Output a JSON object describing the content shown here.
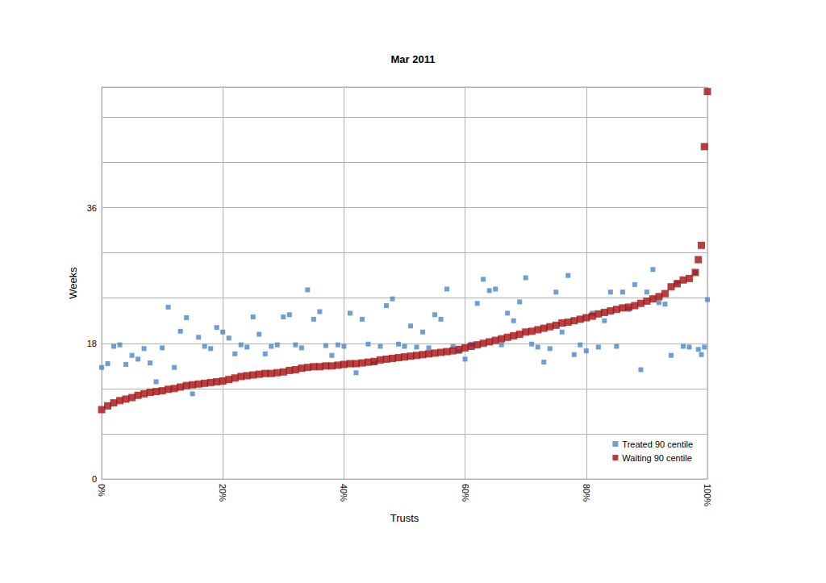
{
  "chart_data": {
    "type": "scatter",
    "title": "Mar 2011",
    "x_label": "Trusts",
    "y_label": "Weeks",
    "x": [
      0,
      1,
      2,
      3,
      4,
      5,
      6,
      7,
      8,
      9,
      10,
      11,
      12,
      13,
      14,
      15,
      16,
      17,
      18,
      19,
      20,
      21,
      22,
      23,
      24,
      25,
      26,
      27,
      28,
      29,
      30,
      31,
      32,
      33,
      34,
      35,
      36,
      37,
      38,
      39,
      40,
      41,
      42,
      43,
      44,
      45,
      46,
      47,
      48,
      49,
      50,
      51,
      52,
      53,
      54,
      55,
      56,
      57,
      58,
      59,
      60,
      61,
      62,
      63,
      64,
      65,
      66,
      67,
      68,
      69,
      70,
      71,
      72,
      73,
      74,
      75,
      76,
      77,
      78,
      79,
      80,
      81,
      82,
      83,
      84,
      85,
      86,
      87,
      88,
      89,
      90,
      91,
      92,
      93,
      94,
      95,
      96,
      97,
      98,
      98.5,
      99,
      99.5,
      100
    ],
    "series": [
      {
        "name": "Treated 90 centile",
        "color": "#4a86c8",
        "marker": "square",
        "values": [
          14.8,
          15.3,
          17.6,
          17.8,
          15.2,
          16.4,
          15.9,
          17.3,
          15.4,
          12.9,
          17.4,
          22.8,
          14.8,
          19.6,
          21.4,
          11.3,
          18.8,
          17.6,
          17.3,
          20.1,
          19.5,
          18.7,
          16.6,
          17.8,
          17.5,
          21.5,
          19.2,
          16.6,
          17.6,
          17.8,
          21.5,
          21.8,
          17.8,
          17.4,
          25.1,
          21.2,
          22.2,
          17.7,
          16.4,
          17.8,
          17.6,
          22.0,
          14.1,
          21.2,
          17.9,
          15.4,
          17.6,
          23.0,
          23.9,
          17.9,
          17.6,
          20.3,
          17.5,
          19.5,
          17.4,
          21.8,
          21.2,
          25.2,
          17.6,
          16.9,
          15.9,
          17.9,
          23.3,
          26.5,
          25.0,
          25.2,
          17.8,
          22.0,
          21.0,
          23.5,
          26.7,
          17.9,
          17.5,
          15.5,
          17.3,
          24.8,
          19.5,
          27.0,
          16.5,
          17.8,
          17.0,
          22.0,
          17.5,
          21.0,
          24.8,
          17.6,
          24.8,
          22.5,
          25.8,
          14.5,
          24.8,
          27.8,
          23.4,
          23.2,
          16.4,
          26.1,
          17.6,
          17.5,
          27.4,
          17.2,
          16.5,
          17.5,
          23.8
        ]
      },
      {
        "name": "Waiting 90 centile",
        "color": "#a50f0f",
        "marker": "square",
        "values": [
          9.2,
          9.7,
          10.1,
          10.4,
          10.6,
          10.8,
          11.1,
          11.3,
          11.5,
          11.6,
          11.7,
          11.9,
          12.0,
          12.2,
          12.4,
          12.5,
          12.6,
          12.7,
          12.8,
          12.9,
          13.0,
          13.2,
          13.4,
          13.6,
          13.7,
          13.8,
          13.9,
          14.0,
          14.0,
          14.1,
          14.2,
          14.4,
          14.5,
          14.7,
          14.8,
          14.9,
          14.9,
          15.0,
          15.0,
          15.1,
          15.2,
          15.3,
          15.3,
          15.4,
          15.5,
          15.6,
          15.8,
          15.9,
          16.0,
          16.1,
          16.2,
          16.3,
          16.4,
          16.5,
          16.6,
          16.7,
          16.8,
          16.9,
          17.0,
          17.2,
          17.4,
          17.6,
          17.8,
          18.0,
          18.2,
          18.4,
          18.6,
          18.8,
          19.0,
          19.2,
          19.5,
          19.6,
          19.8,
          20.0,
          20.2,
          20.4,
          20.7,
          20.8,
          21.0,
          21.2,
          21.4,
          21.6,
          21.9,
          22.1,
          22.3,
          22.5,
          22.7,
          22.8,
          23.0,
          23.3,
          23.6,
          23.9,
          24.2,
          24.6,
          25.5,
          25.9,
          26.4,
          26.6,
          27.4,
          29.1,
          31.0,
          44.1,
          51.4
        ]
      }
    ],
    "xlim": [
      0,
      100
    ],
    "xticks": [
      {
        "value": 0,
        "label": "0%"
      },
      {
        "value": 20,
        "label": "20%"
      },
      {
        "value": 40,
        "label": "40%"
      },
      {
        "value": 60,
        "label": "60%"
      },
      {
        "value": 80,
        "label": "80%"
      },
      {
        "value": 100,
        "label": "100%"
      }
    ],
    "ylim": [
      0,
      52
    ],
    "yticks": [
      0,
      18,
      36
    ],
    "grid": true,
    "legend": "lower right"
  }
}
